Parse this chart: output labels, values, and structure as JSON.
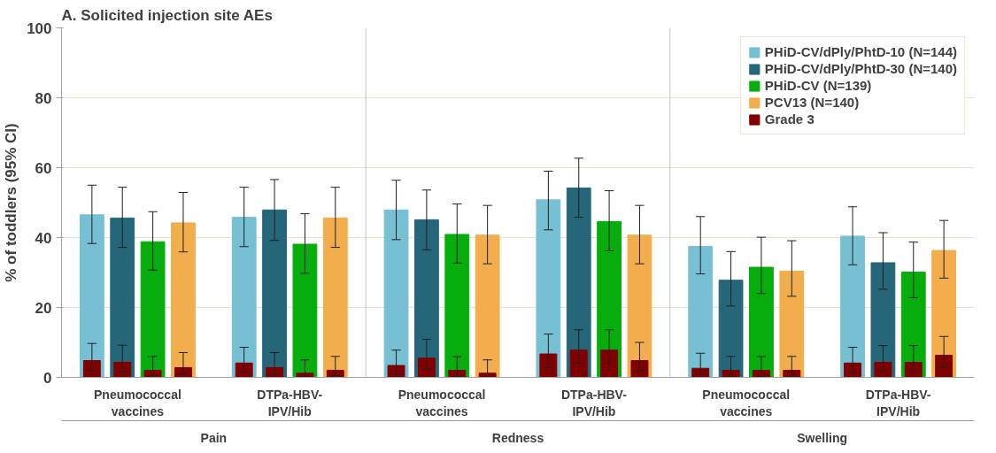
{
  "chart_data": {
    "type": "bar",
    "title": "A. Solicited injection site AEs",
    "ylabel": "% of toddlers (95% CI)",
    "categories": [
      "Pneumococcal vaccines",
      "DTPa-HBV-IPV/Hib",
      "Pneumococcal vaccines",
      "DTPa-HBV-IPV/Hib",
      "Pneumococcal vaccines",
      "DTPa-HBV-IPV/Hib"
    ],
    "annotations": [
      "Pain",
      "Redness",
      "Swelling"
    ],
    "ylim": [
      0,
      100
    ],
    "yticks": [
      0,
      20,
      40,
      60,
      80,
      100
    ],
    "grid": "y",
    "legend": "top right",
    "series": [
      {
        "name": "PHiD-CV/dPly/PhtD-10 (N=144)",
        "color": "#77c0d4",
        "values": [
          46.5,
          45.8,
          47.9,
          50.8,
          37.5,
          40.4
        ],
        "errors": [
          [
            38.3,
            55.0
          ],
          [
            37.4,
            54.4
          ],
          [
            39.4,
            56.4
          ],
          [
            42.2,
            59.0
          ],
          [
            29.6,
            46.0
          ],
          [
            32.2,
            48.8
          ]
        ]
      },
      {
        "name": "PHiD-CV/dPly/PhtD-30 (N=140)",
        "color": "#256678",
        "values": [
          45.6,
          47.9,
          45.1,
          54.2,
          27.8,
          32.8
        ],
        "errors": [
          [
            37.2,
            54.4
          ],
          [
            39.2,
            56.6
          ],
          [
            36.5,
            53.6
          ],
          [
            45.8,
            62.7
          ],
          [
            20.4,
            36.0
          ],
          [
            25.2,
            41.4
          ]
        ]
      },
      {
        "name": "PHiD-CV (N=139)",
        "color": "#06ad0c",
        "values": [
          38.8,
          38.1,
          40.9,
          44.6,
          31.5,
          30.1
        ],
        "errors": [
          [
            30.7,
            47.4
          ],
          [
            29.8,
            46.8
          ],
          [
            32.7,
            49.6
          ],
          [
            36.2,
            53.4
          ],
          [
            24.0,
            40.1
          ],
          [
            22.8,
            38.7
          ]
        ]
      },
      {
        "name": "PCV13 (N=140)",
        "color": "#f2ae4c",
        "values": [
          44.2,
          45.6,
          40.7,
          40.7,
          30.4,
          36.3
        ],
        "errors": [
          [
            35.9,
            52.9
          ],
          [
            37.2,
            54.4
          ],
          [
            32.5,
            49.2
          ],
          [
            32.5,
            49.2
          ],
          [
            23.2,
            39.1
          ],
          [
            28.4,
            44.9
          ]
        ]
      },
      {
        "name": "Grade 3",
        "color": "#800000",
        "values": [
          4.8,
          4.1,
          3.4,
          6.7,
          2.6,
          4.1
        ],
        "errors": [
          [
            1.9,
            9.7
          ],
          [
            1.4,
            8.6
          ],
          [
            0.9,
            7.8
          ],
          [
            2.7,
            12.4
          ],
          [
            0.8,
            6.9
          ],
          [
            1.4,
            8.6
          ]
        ]
      },
      {
        "color": "#800000",
        "values": [
          4.3,
          2.8,
          5.5,
          7.8,
          2.0,
          4.3
        ],
        "errors": [
          [
            1.5,
            9.2
          ],
          [
            0.8,
            7.1
          ],
          [
            2.3,
            10.9
          ],
          [
            4.1,
            13.6
          ],
          [
            0.2,
            6.0
          ],
          [
            1.7,
            9.1
          ]
        ]
      },
      {
        "color": "#800000",
        "values": [
          2.0,
          1.2,
          2.0,
          7.8,
          2.0,
          4.3
        ],
        "errors": [
          [
            0.5,
            6.0
          ],
          [
            0.3,
            5.0
          ],
          [
            0.3,
            5.9
          ],
          [
            4.1,
            13.6
          ],
          [
            0.2,
            6.0
          ],
          [
            1.7,
            9.1
          ]
        ]
      },
      {
        "color": "#800000",
        "values": [
          2.8,
          2.0,
          1.2,
          4.8,
          2.0,
          6.3
        ],
        "errors": [
          [
            0.8,
            7.1
          ],
          [
            0.5,
            6.0
          ],
          [
            0.1,
            5.0
          ],
          [
            1.9,
            10.0
          ],
          [
            0.2,
            6.0
          ],
          [
            3.0,
            11.7
          ]
        ]
      }
    ]
  }
}
